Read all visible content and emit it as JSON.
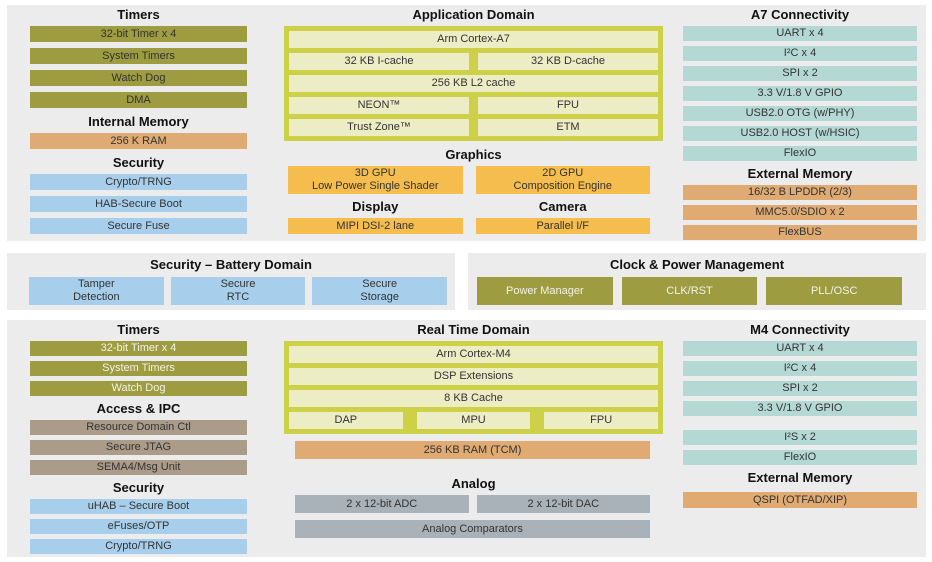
{
  "colors": {
    "olive": "#9e9c40",
    "tan": "#dfab72",
    "light_blue": "#a7cfec",
    "teal": "#b4d9d5",
    "yellow_green": "#ccd147",
    "pale_yellow": "#ecedc4",
    "orange": "#f4bd4e",
    "gray": "#a9b2b9",
    "brown": "#ab9c8a",
    "panel_bg": "#ececec"
  },
  "top": {
    "timers": {
      "title": "Timers",
      "items": [
        "32-bit Timer x 4",
        "System Timers",
        "Watch Dog",
        "DMA"
      ]
    },
    "internal_memory": {
      "title": "Internal Memory",
      "items": [
        "256 K RAM"
      ]
    },
    "security": {
      "title": "Security",
      "items": [
        "Crypto/TRNG",
        "HAB-Secure Boot",
        "Secure Fuse"
      ]
    },
    "application_domain": {
      "title": "Application Domain",
      "cpu": "Arm Cortex-A7",
      "icache": "32 KB I-cache",
      "dcache": "32 KB D-cache",
      "l2": "256 KB L2 cache",
      "neon": "NEON™",
      "fpu": "FPU",
      "trustzone": "Trust Zone™",
      "etm": "ETM"
    },
    "graphics": {
      "title": "Graphics",
      "gpu3d": [
        "3D GPU",
        "Low Power Single Shader"
      ],
      "gpu2d": [
        "2D GPU",
        "Composition Engine"
      ]
    },
    "display": {
      "title": "Display",
      "item": "MIPI DSI-2 lane"
    },
    "camera": {
      "title": "Camera",
      "item": "Parallel I/F"
    },
    "a7_connectivity": {
      "title": "A7 Connectivity",
      "items": [
        "UART x 4",
        "I²C x 4",
        "SPI x 2",
        "3.3 V/1.8 V GPIO",
        "USB2.0 OTG (w/PHY)",
        "USB2.0 HOST (w/HSIC)",
        "FlexIO"
      ]
    },
    "external_memory": {
      "title": "External Memory",
      "items": [
        "16/32 B LPDDR (2/3)",
        "MMC5.0/SDIO x 2",
        "FlexBUS"
      ]
    }
  },
  "middle": {
    "security_battery": {
      "title": "Security – Battery Domain",
      "items": [
        [
          "Tamper",
          "Detection"
        ],
        [
          "Secure",
          "RTC"
        ],
        [
          "Secure",
          "Storage"
        ]
      ]
    },
    "clock_power": {
      "title": "Clock & Power Management",
      "items": [
        "Power Manager",
        "CLK/RST",
        "PLL/OSC"
      ]
    }
  },
  "bottom": {
    "timers": {
      "title": "Timers",
      "items": [
        "32-bit Timer x 4",
        "System Timers",
        "Watch Dog"
      ]
    },
    "access_ipc": {
      "title": "Access & IPC",
      "items": [
        "Resource Domain Ctl",
        "Secure JTAG",
        "SEMA4/Msg Unit"
      ]
    },
    "security": {
      "title": "Security",
      "items": [
        "uHAB – Secure Boot",
        "eFuses/OTP",
        "Crypto/TRNG"
      ]
    },
    "real_time_domain": {
      "title": "Real Time Domain",
      "cpu": "Arm Cortex-M4",
      "dsp": "DSP Extensions",
      "cache": "8 KB Cache",
      "dap": "DAP",
      "mpu": "MPU",
      "fpu": "FPU",
      "ram": "256 KB RAM (TCM)"
    },
    "analog": {
      "title": "Analog",
      "adc": "2 x 12-bit ADC",
      "dac": "2 x 12-bit DAC",
      "comparators": "Analog Comparators"
    },
    "m4_connectivity": {
      "title": "M4 Connectivity",
      "items": [
        "UART x 4",
        "I²C x 4",
        "SPI x 2",
        "3.3 V/1.8 V GPIO",
        "I²S x 2",
        "FlexIO"
      ]
    },
    "external_memory": {
      "title": "External Memory",
      "items": [
        "QSPI (OTFAD/XIP)"
      ]
    }
  }
}
